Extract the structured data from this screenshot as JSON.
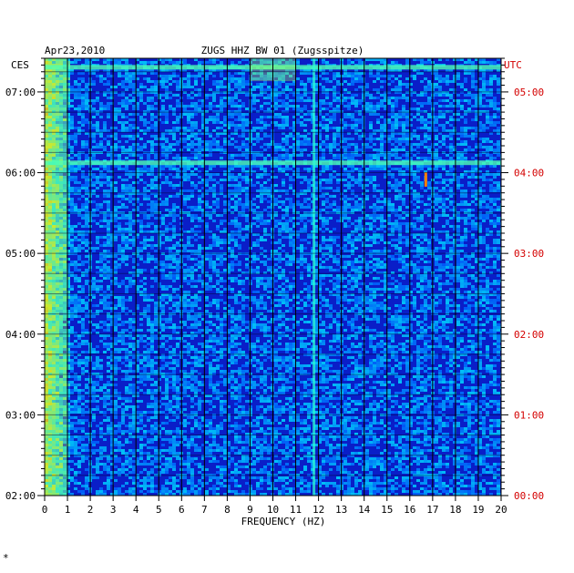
{
  "header": {
    "date": "Apr23,2010",
    "station": "ZUGS HHZ BW 01 (Zugsspitze)",
    "left_zone": "CES",
    "right_zone": "UTC",
    "corner_mark": "*"
  },
  "colors": {
    "background": "#ffffff",
    "spectrogram_base": "#0a1ec8",
    "utc_labels": "#d40000",
    "grid": "#000000"
  },
  "chart_data": {
    "type": "heatmap",
    "title": "ZUGS HHZ BW 01 (Zugsspitze)",
    "xlabel": "FREQUENCY (HZ)",
    "ylabel": "",
    "xlim": [
      0,
      20
    ],
    "x_ticks": [
      "0",
      "1",
      "2",
      "3",
      "4",
      "5",
      "6",
      "7",
      "8",
      "9",
      "10",
      "11",
      "12",
      "13",
      "14",
      "15",
      "16",
      "17",
      "18",
      "19",
      "20"
    ],
    "y_left_ticks": [
      "02:00",
      "03:00",
      "04:00",
      "05:00",
      "06:00",
      "07:00"
    ],
    "y_right_ticks": [
      "00:00",
      "01:00",
      "02:00",
      "03:00",
      "04:00",
      "05:00"
    ],
    "y_range_local": [
      "02:00",
      "07:25"
    ],
    "grid": true,
    "colormap": "jet",
    "features": [
      {
        "desc": "elevated low-frequency energy",
        "freq_range_hz": [
          0,
          1
        ],
        "time_range_local": [
          "02:00",
          "07:25"
        ]
      },
      {
        "desc": "broadband energy band",
        "freq_range_hz": [
          0,
          20
        ],
        "time_local": "06:07"
      },
      {
        "desc": "broadband energy band",
        "freq_range_hz": [
          0,
          20
        ],
        "time_local": "07:18"
      },
      {
        "desc": "spectral line",
        "freq_hz": 11.8,
        "time_range_local": [
          "02:00",
          "07:25"
        ]
      },
      {
        "desc": "transient",
        "freq_range_hz": [
          9,
          11
        ],
        "time_range_local": [
          "07:08",
          "07:25"
        ]
      },
      {
        "desc": "transient",
        "freq_hz": 16.7,
        "time_local": "05:55"
      }
    ]
  }
}
